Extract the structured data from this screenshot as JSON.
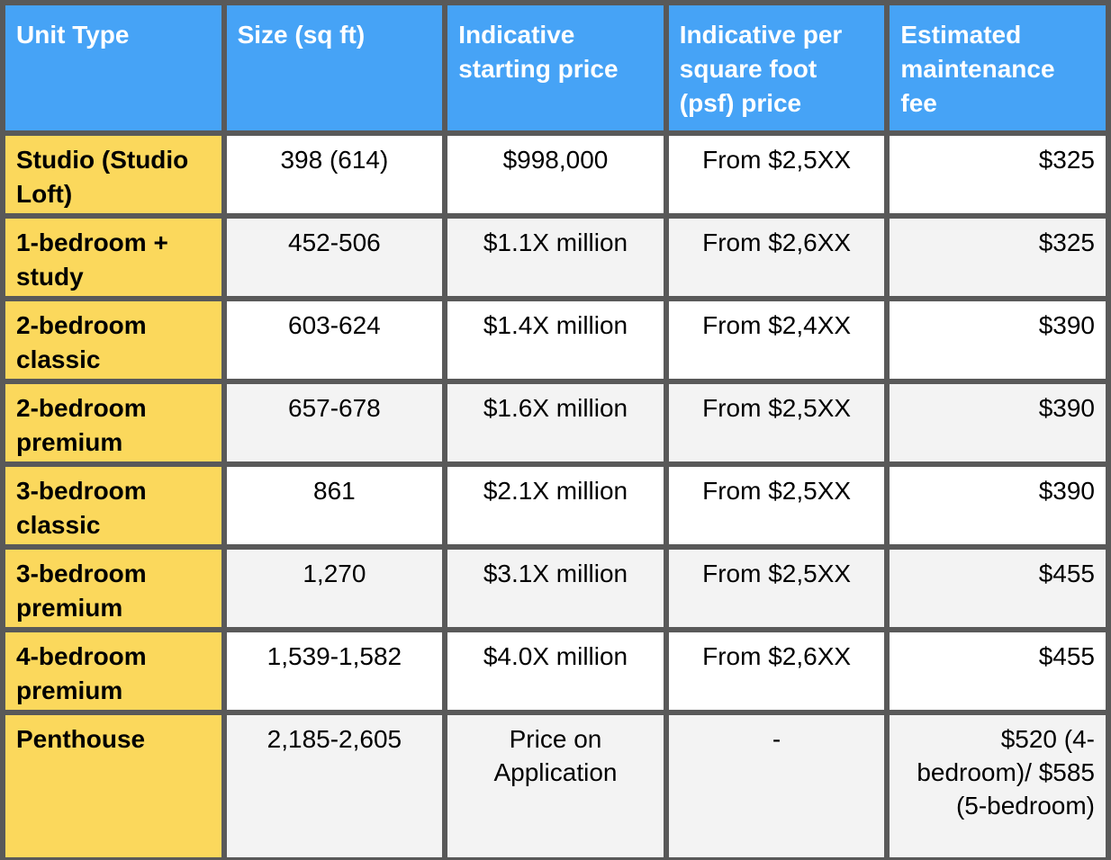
{
  "header": {
    "columns": [
      "Unit Type",
      "Size (sq ft)",
      "Indicative starting price",
      "Indicative per square foot (psf) price",
      "Estimated maintenance fee"
    ]
  },
  "table": {
    "rows": [
      [
        "Studio (Studio Loft)",
        "398 (614)",
        "$998,000",
        "From $2,5XX",
        "$325"
      ],
      [
        "1-bedroom + study",
        "452-506",
        "$1.1X million",
        "From $2,6XX",
        "$325"
      ],
      [
        "2-bedroom classic",
        "603-624",
        "$1.4X million",
        "From $2,4XX",
        "$390"
      ],
      [
        "2-bedroom premium",
        "657-678",
        "$1.6X million",
        "From $2,5XX",
        "$390"
      ],
      [
        "3-bedroom classic",
        "861",
        "$2.1X million",
        "From $2,5XX",
        "$390"
      ],
      [
        "3-bedroom premium",
        "1,270",
        "$3.1X million",
        "From $2,5XX",
        "$455"
      ],
      [
        "4-bedroom premium",
        "1,539-1,582",
        "$4.0X million",
        "From $2,6XX",
        "$455"
      ],
      [
        "Penthouse",
        "2,185-2,605",
        "Price on Application",
        "-",
        "$520 (4-bedroom)/ $585 (5-bedroom)"
      ]
    ]
  }
}
